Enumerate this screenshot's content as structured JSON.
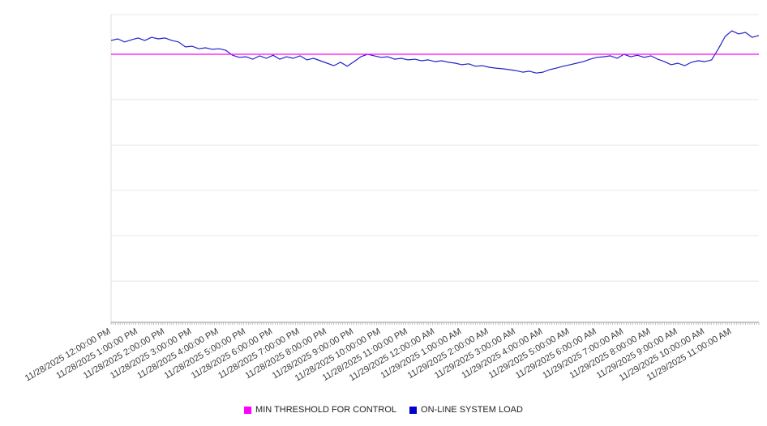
{
  "chart_data": {
    "type": "line",
    "title": "",
    "xlabel": "",
    "ylabel": "",
    "legend_position": "bottom",
    "grid": true,
    "y_tick_labels": [],
    "ylim": [
      0,
      100
    ],
    "gridline_values": [
      13.4,
      28.2,
      42.9,
      57.6,
      72.4,
      87.1,
      100
    ],
    "x_tick_labels": [
      "11/28/2025 12:00:00 PM",
      "11/28/2025 1:00:00 PM",
      "11/28/2025 2:00:00 PM",
      "11/28/2025 3:00:00 PM",
      "11/28/2025 4:00:00 PM",
      "11/28/2025 5:00:00 PM",
      "11/28/2025 6:00:00 PM",
      "11/28/2025 7:00:00 PM",
      "11/28/2025 8:00:00 PM",
      "11/28/2025 9:00:00 PM",
      "11/28/2025 10:00:00 PM",
      "11/28/2025 11:00:00 PM",
      "11/29/2025 12:00:00 AM",
      "11/29/2025 1:00:00 AM",
      "11/29/2025 2:00:00 AM",
      "11/29/2025 3:00:00 AM",
      "11/29/2025 4:00:00 AM",
      "11/29/2025 5:00:00 AM",
      "11/29/2025 6:00:00 AM",
      "11/29/2025 7:00:00 AM",
      "11/29/2025 8:00:00 AM",
      "11/29/2025 9:00:00 AM",
      "11/29/2025 10:00:00 AM",
      "11/29/2025 11:00:00 AM"
    ],
    "series": [
      {
        "name": "MIN THRESHOLD FOR CONTROL",
        "type": "threshold",
        "value": 87.1,
        "color": "#ff00ff"
      },
      {
        "name": "ON-LINE SYSTEM LOAD",
        "type": "line",
        "color": "#2222cc",
        "values": [
          91.6,
          92.1,
          91.1,
          91.8,
          92.4,
          91.6,
          92.6,
          92.1,
          92.4,
          91.6,
          91.1,
          89.5,
          89.7,
          88.9,
          89.2,
          88.7,
          88.9,
          88.4,
          86.8,
          86.1,
          86.3,
          85.5,
          86.6,
          85.8,
          86.8,
          85.5,
          86.3,
          85.8,
          86.6,
          85.3,
          85.8,
          85.0,
          84.2,
          83.4,
          84.5,
          83.2,
          84.7,
          86.3,
          87.1,
          86.6,
          86.1,
          86.3,
          85.5,
          85.8,
          85.3,
          85.5,
          85.0,
          85.3,
          84.7,
          85.0,
          84.5,
          84.2,
          83.7,
          84.0,
          83.2,
          83.4,
          82.9,
          82.6,
          82.4,
          82.1,
          81.8,
          81.3,
          81.6,
          81.0,
          81.3,
          82.1,
          82.6,
          83.2,
          83.7,
          84.2,
          84.7,
          85.5,
          86.1,
          86.3,
          86.6,
          85.8,
          87.1,
          86.3,
          86.8,
          86.1,
          86.6,
          85.5,
          84.7,
          83.7,
          84.2,
          83.4,
          84.5,
          85.0,
          84.7,
          85.3,
          88.9,
          92.9,
          94.7,
          93.7,
          94.2,
          92.6,
          93.2
        ]
      }
    ]
  }
}
